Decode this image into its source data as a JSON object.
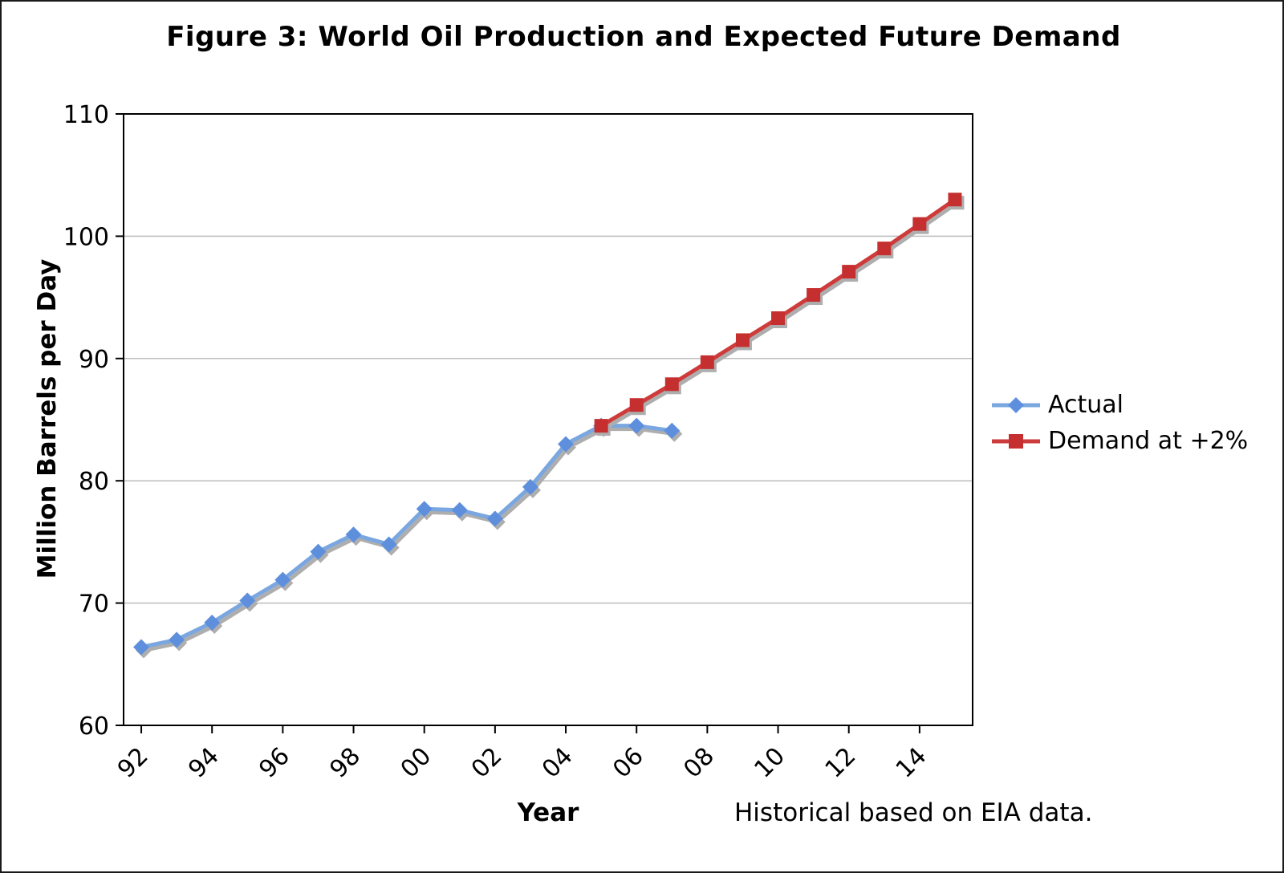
{
  "chart_data": {
    "type": "line",
    "title": "Figure 3: World Oil Production and Expected Future Demand",
    "xlabel": "Year",
    "ylabel": "Million Barrels per Day",
    "note": "Historical based on EIA data.",
    "ylim": [
      60,
      110
    ],
    "yticks": [
      60,
      70,
      80,
      90,
      100,
      110
    ],
    "x_range": [
      1992,
      2015
    ],
    "xticks": [
      {
        "value": 1992,
        "label": "92"
      },
      {
        "value": 1994,
        "label": "94"
      },
      {
        "value": 1996,
        "label": "96"
      },
      {
        "value": 1998,
        "label": "98"
      },
      {
        "value": 2000,
        "label": "00"
      },
      {
        "value": 2002,
        "label": "02"
      },
      {
        "value": 2004,
        "label": "04"
      },
      {
        "value": 2006,
        "label": "06"
      },
      {
        "value": 2008,
        "label": "08"
      },
      {
        "value": 2010,
        "label": "10"
      },
      {
        "value": 2012,
        "label": "12"
      },
      {
        "value": 2014,
        "label": "14"
      }
    ],
    "grid": "horizontal",
    "legend_position": "right",
    "colors": {
      "gridline": "#bdbdbd",
      "axis": "#000000",
      "shadow": "#aeaeae",
      "background": "#ffffff"
    },
    "series": [
      {
        "name": "Actual",
        "marker": "diamond",
        "line_color": "#7aa7e0",
        "marker_color": "#5e8fdd",
        "x": [
          1992,
          1993,
          1994,
          1995,
          1996,
          1997,
          1998,
          1999,
          2000,
          2001,
          2002,
          2003,
          2004,
          2005,
          2006,
          2007
        ],
        "values": [
          66.4,
          67.0,
          68.4,
          70.2,
          71.9,
          74.2,
          75.6,
          74.8,
          77.7,
          77.6,
          76.9,
          79.5,
          83.0,
          84.5,
          84.5,
          84.1
        ]
      },
      {
        "name": "Demand at +2%",
        "marker": "square",
        "line_color": "#ce3b3b",
        "marker_color": "#c62f2f",
        "x": [
          2005,
          2006,
          2007,
          2008,
          2009,
          2010,
          2011,
          2012,
          2013,
          2014,
          2015
        ],
        "values": [
          84.5,
          86.2,
          87.9,
          89.7,
          91.5,
          93.3,
          95.2,
          97.1,
          99.0,
          101.0,
          103.0
        ]
      }
    ]
  }
}
